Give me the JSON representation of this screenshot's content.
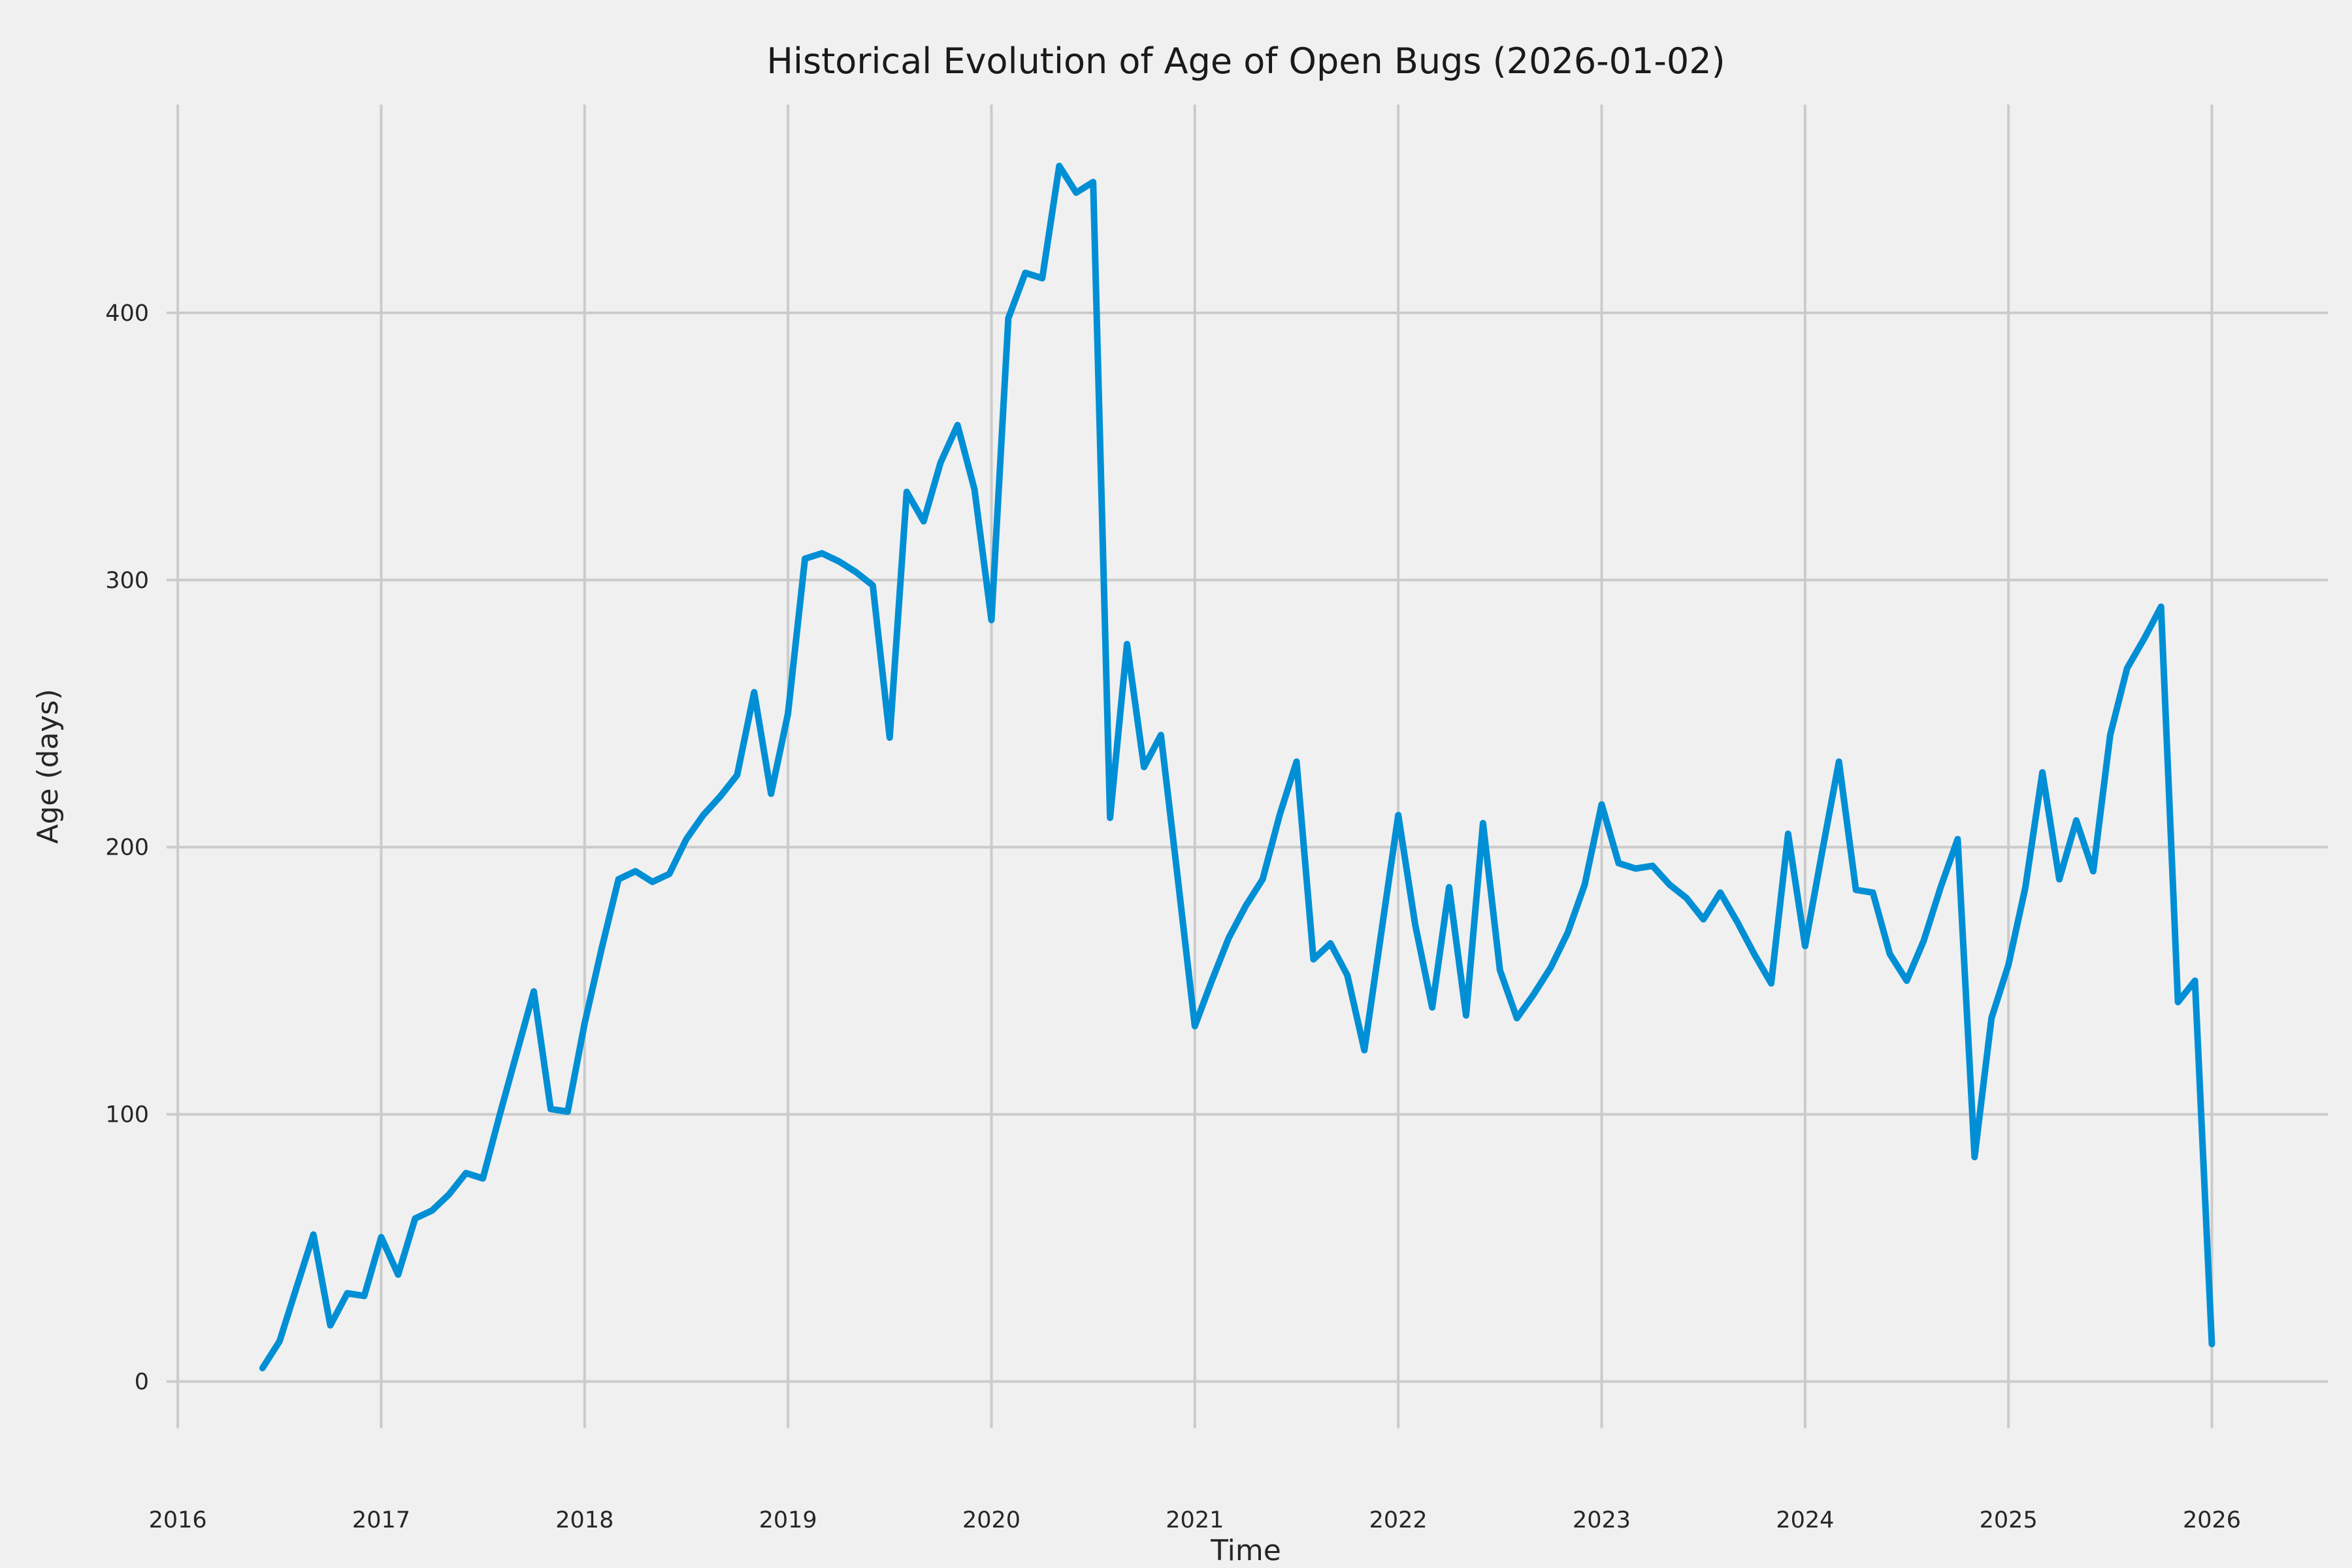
{
  "page": {
    "title": "Historical Evolution of Age of Open Bugs (2026-01-02)"
  },
  "chart_data": {
    "type": "line",
    "title": "Historical Evolution of Age of Open Bugs (2026-01-02)",
    "xlabel": "Time",
    "ylabel": "Age (days)",
    "x_tick_labels": [
      "2016",
      "2017",
      "2018",
      "2019",
      "2020",
      "2021",
      "2022",
      "2023",
      "2024",
      "2025",
      "2026"
    ],
    "x_tick_years": [
      2016,
      2017,
      2018,
      2019,
      2020,
      2021,
      2022,
      2023,
      2024,
      2025,
      2026
    ],
    "y_tick_labels": [
      "0",
      "100",
      "200",
      "300",
      "400"
    ],
    "y_tick_values": [
      0,
      100,
      200,
      300,
      400
    ],
    "xlim": [
      2015.945,
      2026.57
    ],
    "ylim": [
      -17.5,
      478
    ],
    "grid": true,
    "legend_position": "none",
    "series": [
      {
        "name": "age-of-open-bugs",
        "start_year": 2016,
        "start_month": 6,
        "frequency": "monthly",
        "values": [
          5,
          15,
          35,
          55,
          21,
          33,
          32,
          54,
          40,
          61,
          64,
          70,
          78,
          76,
          100,
          123,
          146,
          102,
          101,
          134,
          162,
          188,
          191,
          187,
          190,
          203,
          212,
          219,
          227,
          258,
          220,
          250,
          308,
          310,
          307,
          303,
          298,
          241,
          333,
          322,
          344,
          358,
          334,
          285,
          398,
          415,
          413,
          455,
          445,
          449,
          211,
          276,
          230,
          242,
          188,
          133,
          150,
          166,
          178,
          188,
          212,
          232,
          158,
          164,
          152,
          124,
          168,
          212,
          171,
          140,
          185,
          137,
          209,
          154,
          136,
          145,
          155,
          168,
          186,
          216,
          194,
          192,
          193,
          186,
          181,
          173,
          183,
          172,
          160,
          149,
          205,
          163,
          198,
          232,
          184,
          183,
          160,
          150,
          165,
          185,
          203,
          84,
          136,
          156,
          185,
          228,
          188,
          210,
          191,
          242,
          267,
          278,
          290,
          142,
          150,
          14
        ]
      }
    ],
    "colors": {
      "line": "#008fd5",
      "background": "#f0f0f0",
      "grid": "#cbcbcb",
      "text": "#262626"
    },
    "line_width": 10
  }
}
